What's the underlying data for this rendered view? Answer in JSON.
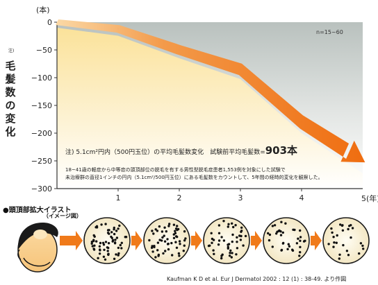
{
  "chart_data": {
    "type": "area",
    "y_unit": "(本)",
    "ylabel": "毛髪数の変化",
    "ylabel_note": "注)",
    "x_unit": "5(年)",
    "x": [
      0,
      1,
      2,
      3,
      4,
      5
    ],
    "values": [
      0,
      -12,
      -50,
      -85,
      -180,
      -250
    ],
    "xticks": [
      "1",
      "2",
      "3",
      "4"
    ],
    "yticks": [
      0,
      -50,
      -100,
      -150,
      -200,
      -250,
      -300
    ],
    "ylim": [
      -300,
      0
    ],
    "xlim": [
      0,
      5
    ],
    "grid": false,
    "colors": {
      "fill_top": "#fbe7a3",
      "fill_bottom": "#ffffff",
      "line": "#f07a1a",
      "background_top": "#bcc3c0",
      "axis": "#333333"
    },
    "n_label": "n=15~60",
    "note_prefix": "注) 5.1cm²円内（500円玉位）の平均毛髪数変化　試験前平均毛髪数=",
    "note_value": "903本",
    "description_lines": [
      "18~41歳の軽症から中等症の頭頂部位の脱毛を有する男性型脱毛症患者1,553例を対象にした試験で",
      "未治療群の直径1インチの円内（5.1cm²/500円玉位）にある毛髪数をカウントして、5年間の経時的変化を観察した。"
    ]
  },
  "illustration": {
    "title": "●頭頂部拡大イラスト",
    "subtitle": "（イメージ図）",
    "stage_densities": [
      64,
      56,
      46,
      36,
      26
    ]
  },
  "citation": "Kaufman K D et al. Eur J Dermatol  2002 : 12 (1) : 38-49. より作図"
}
